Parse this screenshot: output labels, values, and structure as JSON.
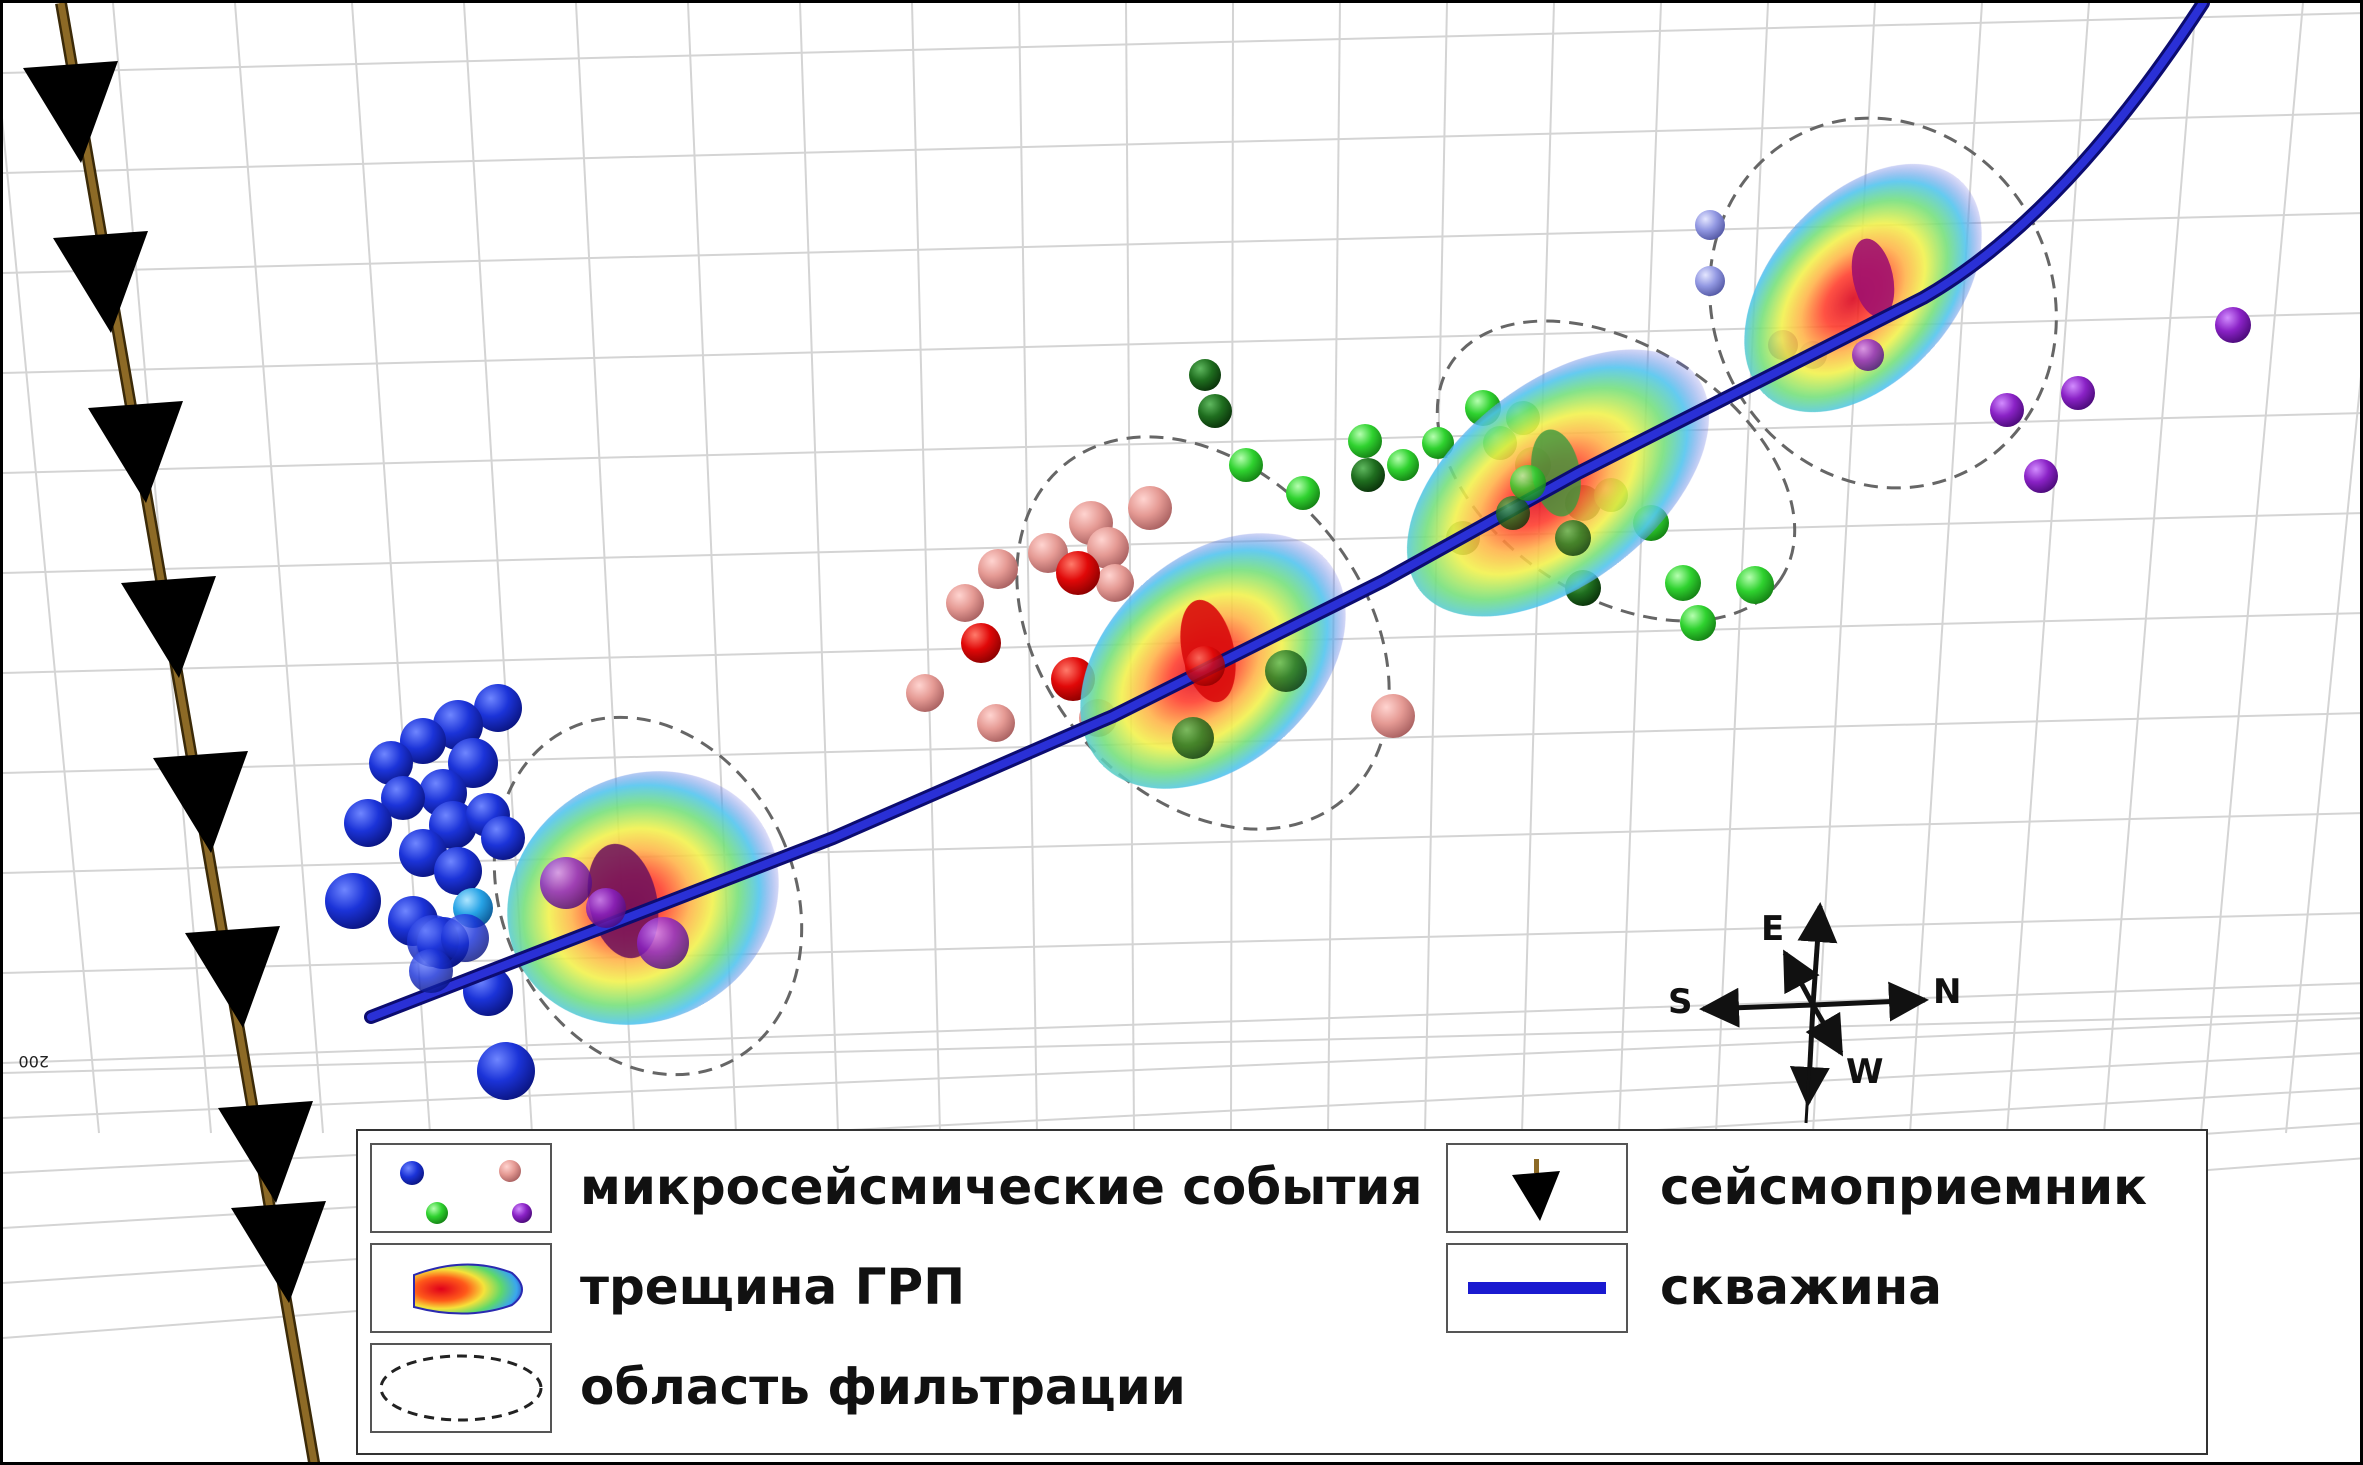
{
  "axis": {
    "tick_label": "200"
  },
  "compass": {
    "north": "N",
    "south": "S",
    "east": "E",
    "west": "W"
  },
  "colors": {
    "well": "#1a1aa8",
    "geophone_string": "#7a5a1e",
    "geophone": "#000000",
    "event_blue": "#1d2fd0",
    "event_pink": "#e39090",
    "event_red": "#e00000",
    "event_green": "#2fd12f",
    "event_darkgreen": "#1c6b1c",
    "event_lavender": "#8f95e0",
    "event_purple": "#8a23c4",
    "fracture_core": "#d01a1a",
    "filtration_outline": "#555555"
  },
  "legend": {
    "events_label": "микросейсмические события",
    "fracture_label": "трещина ГРП",
    "filtration_label": "область фильтрации",
    "geophone_label": "сейсмоприемник",
    "well_label": "скважина"
  }
}
